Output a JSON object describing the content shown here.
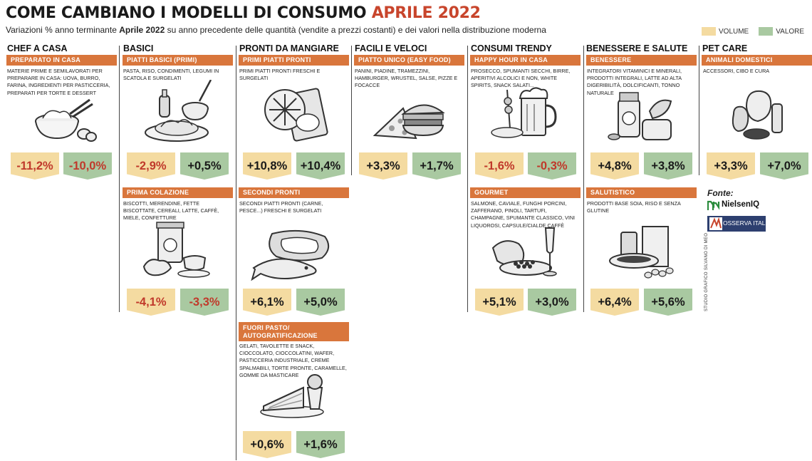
{
  "header": {
    "title_main": "COME CAMBIANO I MODELLI DI CONSUMO ",
    "title_accent": "APRILE 2022",
    "subtitle_pre": "Variazioni % anno terminante ",
    "subtitle_bold": "Aprile 2022",
    "subtitle_post": " su anno precedente delle quantità (vendite a prezzi costanti) e dei valori nella distribuzione moderna"
  },
  "legend": {
    "volume": "VOLUME",
    "valore": "VALORE"
  },
  "colors": {
    "volume": "#f4dba1",
    "valore": "#a9c9a1",
    "bar": "#d9763c",
    "negative": "#c0392b",
    "accent": "#c8452c"
  },
  "columns": [
    {
      "title": "CHEF A CASA"
    },
    {
      "title": "BASICI"
    },
    {
      "title": "PRONTI DA MANGIARE"
    },
    {
      "title": "FACILI E VELOCI"
    },
    {
      "title": "CONSUMI TRENDY"
    },
    {
      "title": "BENESSERE E SALUTE"
    },
    {
      "title": "PET CARE"
    }
  ],
  "chart_data": {
    "type": "table",
    "series_names": [
      "VOLUME",
      "VALORE"
    ],
    "units": "%",
    "categories": [
      {
        "group": "CHEF A CASA",
        "segment": "PREPARATO IN CASA",
        "description": "MATERIE PRIME E SEMILAVORATI PER PREPARARE IN CASA: UOVA, BURRO, FARINA, INGREDIENTI PER PASTICCERIA, PREPARATI PER TORTE E DESSERT",
        "volume": -11.2,
        "valore": -10.0,
        "volume_label": "-11,2%",
        "valore_label": "-10,0%",
        "icon": "bowl-flour-eggs-icon"
      },
      {
        "group": "BASICI",
        "segment": "PIATTI BASICI (PRIMI)",
        "description": "PASTA, RISO, CONDIMENTI, LEGUMI IN SCATOLA E SURGELATI",
        "volume": -2.9,
        "valore": 0.5,
        "volume_label": "-2,9%",
        "valore_label": "+0,5%",
        "icon": "pasta-plate-icon"
      },
      {
        "group": "BASICI",
        "segment": "PRIMA COLAZIONE",
        "description": "BISCOTTI, MERENDINE, FETTE BISCOTTATE, CEREALI, LATTE, CAFFÈ, MIELE, CONFETTURE",
        "volume": -4.1,
        "valore": -3.3,
        "volume_label": "-4,1%",
        "valore_label": "-3,3%",
        "icon": "breakfast-jar-coffee-icon"
      },
      {
        "group": "PRONTI DA MANGIARE",
        "segment": "PRIMI PIATTI PRONTI",
        "description": "PRIMI PIATTI PRONTI FRESCHI E SURGELATI",
        "volume": 10.8,
        "valore": 10.4,
        "volume_label": "+10,8%",
        "valore_label": "+10,4%",
        "icon": "frozen-meal-icon"
      },
      {
        "group": "PRONTI DA MANGIARE",
        "segment": "SECONDI PRONTI",
        "description": "SECONDI PIATTI PRONTI (CARNE, PESCE...) FRESCHI E SURGELATI",
        "volume": 6.1,
        "valore": 5.0,
        "volume_label": "+6,1%",
        "valore_label": "+5,0%",
        "icon": "meat-fish-icon"
      },
      {
        "group": "PRONTI DA MANGIARE",
        "segment": "FUORI PASTO/ AUTOGRATIFICAZIONE",
        "description": "GELATI, TAVOLETTE E SNACK, CIOCCOLATO, CIOCCOLATINI, WAFER, PASTICCERIA INDUSTRIALE, CREME SPALMABILI, TORTE PRONTE, CARAMELLE, GOMME DA MASTICARE",
        "volume": 0.6,
        "valore": 1.6,
        "volume_label": "+0,6%",
        "valore_label": "+1,6%",
        "icon": "cake-slice-icon"
      },
      {
        "group": "FACILI E VELOCI",
        "segment": "PIATTO UNICO (EASY FOOD)",
        "description": "PANINI, PIADINE, TRAMEZZINI, HAMBURGER, WRUSTEL, SALSE, PIZZE E FOCACCE",
        "volume": 3.3,
        "valore": 1.7,
        "volume_label": "+3,3%",
        "valore_label": "+1,7%",
        "icon": "pizza-burger-icon"
      },
      {
        "group": "CONSUMI TRENDY",
        "segment": "HAPPY HOUR IN CASA",
        "description": "PROSECCO, SPUMANTI SECCHI, BIRRE, APERITIVI ALCOLICI E NON, WHITE SPIRITS, SNACK SALATI...",
        "volume": -1.6,
        "valore": -0.3,
        "volume_label": "-1,6%",
        "valore_label": "-0,3%",
        "icon": "beer-mug-icon"
      },
      {
        "group": "CONSUMI TRENDY",
        "segment": "GOURMET",
        "description": "SALMONE, CAVIALE, FUNGHI PORCINI, ZAFFERANO, PINOLI, TARTUFI, CHAMPAGNE, SPUMANTE CLASSICO, VINI LIQUOROSI, CAPSULE/CIALDE CAFFÈ",
        "volume": 5.1,
        "valore": 3.0,
        "volume_label": "+5,1%",
        "valore_label": "+3,0%",
        "icon": "salmon-champagne-icon"
      },
      {
        "group": "BENESSERE E SALUTE",
        "segment": "BENESSERE",
        "description": "INTEGRATORI VITAMINICI E MINERALI, PRODOTTI INTEGRALI, LATTE AD ALTA DIGERIBILITÀ, DOLCIFICANTI, TONNO NATURALE",
        "volume": 4.8,
        "valore": 3.8,
        "volume_label": "+4,8%",
        "valore_label": "+3,8%",
        "icon": "supplements-icon"
      },
      {
        "group": "BENESSERE E SALUTE",
        "segment": "SALUTISTICO",
        "description": "PRODOTTI BASE SOIA, RISO E SENZA GLUTINE",
        "volume": 6.4,
        "valore": 5.6,
        "volume_label": "+6,4%",
        "valore_label": "+5,6%",
        "icon": "soy-bowl-icon"
      },
      {
        "group": "PET CARE",
        "segment": "ANIMALI DOMESTICI",
        "description": "ACCESSORI, CIBO E CURA",
        "volume": 3.3,
        "valore": 7.0,
        "volume_label": "+3,3%",
        "valore_label": "+7,0%",
        "icon": "pets-icon"
      }
    ]
  },
  "sources": {
    "label": "Fonte:",
    "nielsen": "NielsenIQ",
    "osserva": "OSSERVA ITALIA"
  },
  "credit": "STUDIO GRAFICO SILVANO DI MEO"
}
